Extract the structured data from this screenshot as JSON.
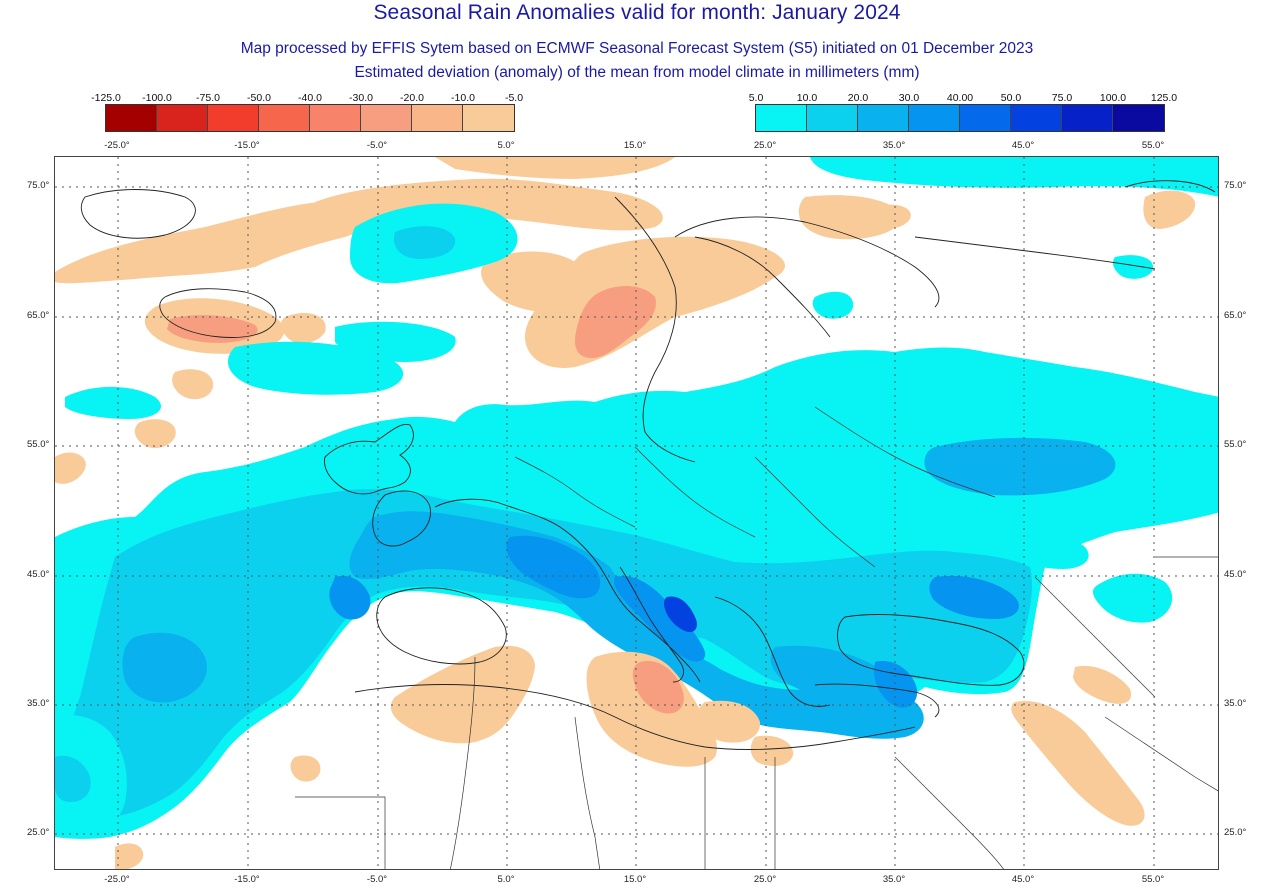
{
  "title": "Seasonal Rain Anomalies valid for month: January 2024",
  "subtitle1": "Map processed by EFFIS Sytem based on ECMWF Seasonal Forecast System (S5) initiated on 01 December 2023",
  "subtitle2": "Estimated deviation (anomaly) of the mean from model climate in millimeters (mm)",
  "legend_negative": {
    "ticks": [
      "-125.0",
      "-100.0",
      "-75.0",
      "-50.0",
      "-40.0",
      "-30.0",
      "-20.0",
      "-10.0",
      "-5.0"
    ],
    "colors": [
      "#a50000",
      "#d8241c",
      "#f23d2c",
      "#f6664c",
      "#f7836a",
      "#f89e80",
      "#f9b688",
      "#f9cb98"
    ]
  },
  "legend_positive": {
    "ticks": [
      "5.0",
      "10.0",
      "20.0",
      "30.0",
      "40.00",
      "50.0",
      "75.0",
      "100.0",
      "125.0"
    ],
    "colors": [
      "#08f3f3",
      "#0cd1ee",
      "#0ab1ef",
      "#0595f0",
      "#0569ec",
      "#0341e0",
      "#0621c8",
      "#0a0aa0"
    ]
  },
  "map": {
    "lon_labels": [
      "-25.0°",
      "-15.0°",
      "-5.0°",
      "5.0°",
      "15.0°",
      "25.0°",
      "35.0°",
      "45.0°",
      "55.0°"
    ],
    "lat_labels": [
      "75.0°",
      "65.0°",
      "55.0°",
      "45.0°",
      "35.0°",
      "25.0°"
    ],
    "lon_top_labels": [
      "-25.0°",
      "-15.0°",
      "-5.0°",
      "5.0°",
      "15.0°",
      "25.0°",
      "35.0°",
      "45.0°",
      "55.0°"
    ],
    "lat_right_labels": [
      "75.0°",
      "65.0°",
      "55.0°",
      "45.0°",
      "35.0°",
      "25.0°"
    ],
    "colors": {
      "cyan": "#08f3f3",
      "light_blue": "#0cd1ee",
      "mid_blue": "#0ab1ef",
      "blue": "#0595f0",
      "deep_blue": "#0341e0",
      "tan": "#f9cb98",
      "salmon": "#f89e80",
      "coast": "#222222",
      "grid": "#555555"
    }
  }
}
